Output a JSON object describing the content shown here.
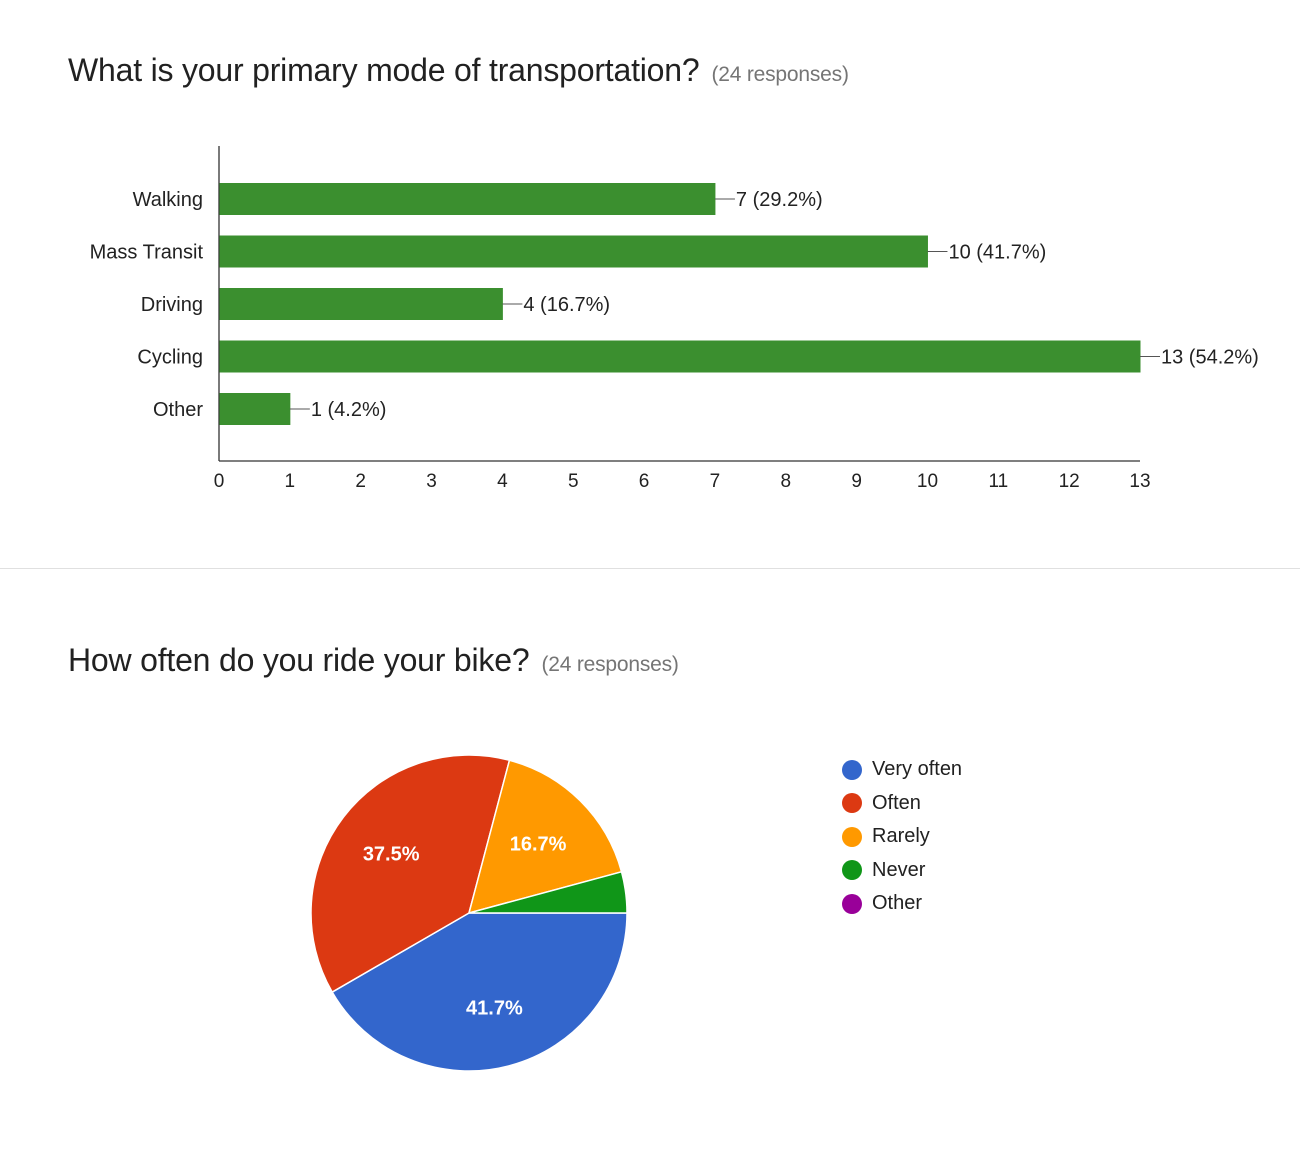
{
  "questions": [
    {
      "title": "What is your primary mode of transportation?",
      "responses": "(24 responses)"
    },
    {
      "title": "How often do you ride your bike?",
      "responses": "(24 responses)"
    }
  ],
  "chart_data": [
    {
      "type": "bar",
      "orientation": "horizontal",
      "categories": [
        "Walking",
        "Mass Transit",
        "Driving",
        "Cycling",
        "Other"
      ],
      "values": [
        7,
        10,
        4,
        13,
        1
      ],
      "data_labels": [
        "7 (29.2%)",
        "10 (41.7%)",
        "4 (16.7%)",
        "13 (54.2%)",
        "1 (4.2%)"
      ],
      "xlim": [
        0,
        13
      ],
      "xticks": [
        0,
        1,
        2,
        3,
        4,
        5,
        6,
        7,
        8,
        9,
        10,
        11,
        12,
        13
      ],
      "bar_color": "#3b8f2f",
      "grid": false
    },
    {
      "type": "pie",
      "labels": [
        "Very often",
        "Often",
        "Rarely",
        "Never",
        "Other"
      ],
      "values": [
        41.7,
        37.5,
        16.7,
        4.2,
        0
      ],
      "slice_labels": [
        "41.7%",
        "37.5%",
        "16.7%",
        "",
        ""
      ],
      "colors": [
        "#3366cc",
        "#dc3912",
        "#ff9900",
        "#109618",
        "#990099"
      ],
      "legend_position": "right"
    }
  ]
}
